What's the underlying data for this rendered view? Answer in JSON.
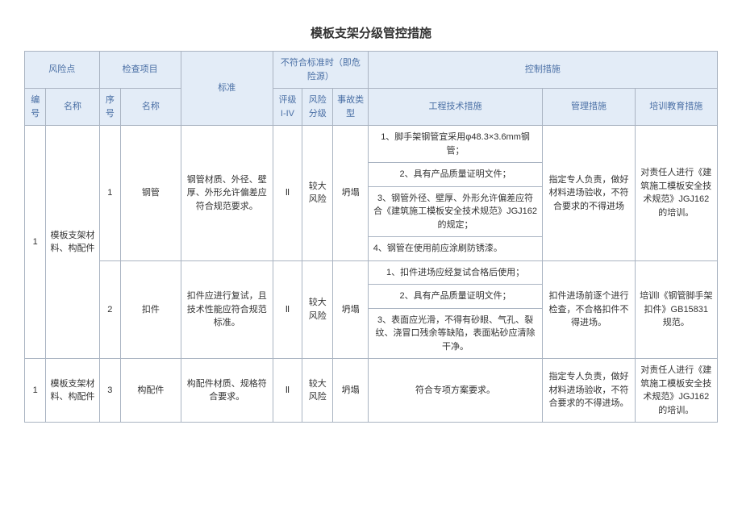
{
  "title": "模板支架分级管控措施",
  "header": {
    "risk_point": "风险点",
    "check_item": "检查项目",
    "standard": "标准",
    "nonconform": "不符合标准时（即危险源）",
    "control": "控制措施",
    "bianhao": "编号",
    "mingcheng": "名称",
    "xuhao": "序号",
    "name2": "名称",
    "pingji": "评级 I-IV",
    "fenji": "风险分级",
    "shigu": "事故类型",
    "gongcheng": "工程技术措施",
    "guanli": "管理措施",
    "peixun": "培训教育措施"
  },
  "row1": {
    "bianhao": "1",
    "mingcheng": "模板支架材料、构配件",
    "xuhao": "1",
    "name2": "钢管",
    "biaozhun": "钢管材质、外径、壁厚、外形允许偏差应符合规范要求。",
    "pingji": "Ⅱ",
    "fenji": "较大风险",
    "shigu": "坍塌",
    "tech1": "1、脚手架钢管宜采用φ48.3×3.6mm钢管；",
    "tech2": "2、具有产品质量证明文件；",
    "tech3": "3、钢管外径、壁厚、外形允许偏差应符合《建筑施工模板安全技术规范》JGJ162 的规定；",
    "tech4": "4、钢管在使用前应涂刷防锈漆。",
    "guanli": "指定专人负责，做好材料进场验收，不符合要求的不得进场",
    "peixun": "对责任人进行《建筑施工模板安全技术规范》JGJ162 的培训。"
  },
  "row2": {
    "xuhao": "2",
    "name2": "扣件",
    "biaozhun": "扣件应进行复试，且技术性能应符合规范标准。",
    "pingji": "Ⅱ",
    "fenji": "较大风险",
    "shigu": "坍塌",
    "tech1": "1、扣件进场应经复试合格后使用；",
    "tech2": "2、具有产品质量证明文件；",
    "tech3": "3、表面应光滑，不得有砂眼、气孔、裂纹、浇冒口残余等缺陷，表面粘砂应清除干净。",
    "guanli": "扣件进场前逐个进行检查，不合格扣件不得进场。",
    "peixun": "培训l《钢管脚手架扣件》GB15831 规范。"
  },
  "row3": {
    "bianhao": "1",
    "mingcheng": "模板支架材料、构配件",
    "xuhao": "3",
    "name2": "构配件",
    "biaozhun": "构配件材质、规格符合要求。",
    "pingji": "Ⅱ",
    "fenji": "较大风险",
    "shigu": "坍塌",
    "tech": "符合专项方案要求。",
    "guanli": "指定专人负责，做好材料进场验收，不符合要求的不得进场。",
    "peixun": "对责任人进行《建筑施工模板安全技术规范》JGJ162 的培训。"
  }
}
